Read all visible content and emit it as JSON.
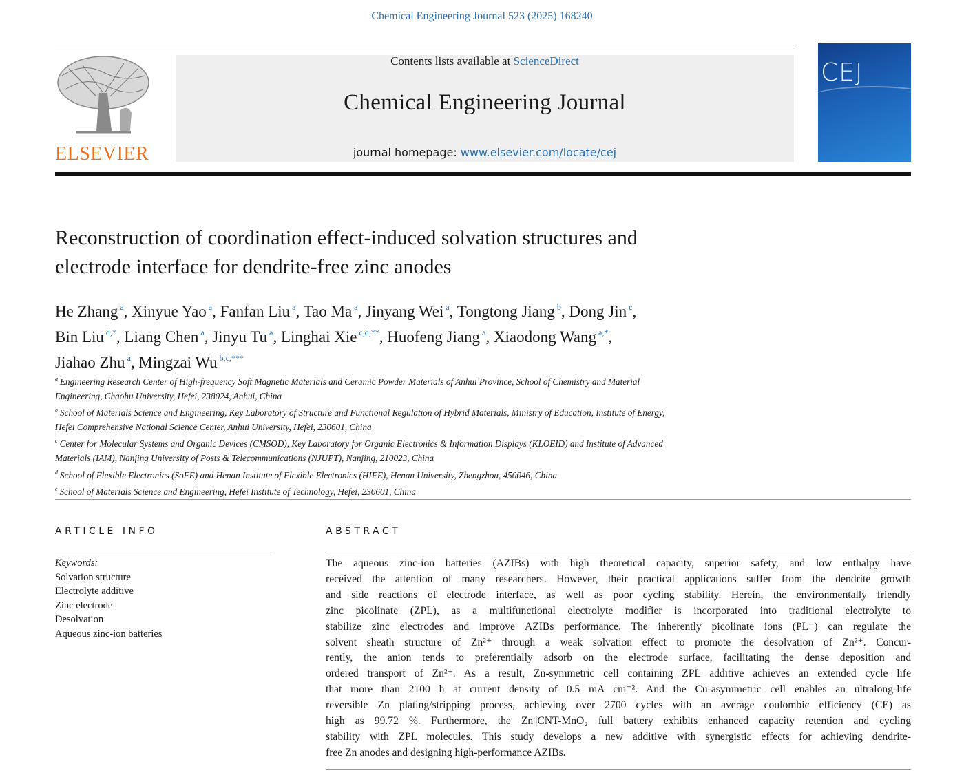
{
  "header": {
    "citation": "Chemical Engineering Journal 523 (2025) 168240",
    "contents_prefix": "Contents lists available at ",
    "contents_link": "ScienceDirect",
    "journal_title": "Chemical Engineering Journal",
    "homepage_label": "journal homepage: ",
    "homepage_url": "www.elsevier.com/locate/cej",
    "publisher_logo": "ELSEVIER",
    "cover_text": "CEJ",
    "brand_color": "#e9711c",
    "link_color": "#2a6fb0"
  },
  "article": {
    "title_lines": [
      "Reconstruction of coordination effect-induced solvation structures and",
      "electrode interface for dendrite-free zinc anodes"
    ],
    "author_lines": [
      [
        {
          "name": "He Zhang",
          "sup": "a"
        },
        {
          "name": "Xinyue Yao",
          "sup": "a"
        },
        {
          "name": "Fanfan Liu",
          "sup": "a"
        },
        {
          "name": "Tao Ma",
          "sup": "a"
        },
        {
          "name": "Jinyang Wei",
          "sup": "a"
        },
        {
          "name": "Tongtong Jiang",
          "sup": "b"
        },
        {
          "name": "Dong Jin",
          "sup": "c"
        }
      ],
      [
        {
          "name": "Bin Liu",
          "sup": "d,*"
        },
        {
          "name": "Liang Chen",
          "sup": "a"
        },
        {
          "name": "Jinyu Tu",
          "sup": "a"
        },
        {
          "name": "Linghai Xie",
          "sup": "c,d,**"
        },
        {
          "name": "Huofeng Jiang",
          "sup": "a"
        },
        {
          "name": "Xiaodong Wang",
          "sup": "a,*"
        }
      ],
      [
        {
          "name": "Jiahao Zhu",
          "sup": "a"
        },
        {
          "name": "Mingzai Wu",
          "sup": "b,c,***"
        }
      ]
    ],
    "affiliations": [
      {
        "label": "a",
        "lines": [
          "Engineering Research Center of High-frequency Soft Magnetic Materials and Ceramic Powder Materials of Anhui Province, School of Chemistry and Material",
          "Engineering, Chaohu University, Hefei, 238024, Anhui, China"
        ]
      },
      {
        "label": "b",
        "lines": [
          "School of Materials Science and Engineering, Key Laboratory of Structure and Functional Regulation of Hybrid Materials, Ministry of Education, Institute of Energy,",
          "Hefei Comprehensive National Science Center, Anhui University, Hefei, 230601, China"
        ]
      },
      {
        "label": "c",
        "lines": [
          "Center for Molecular Systems and Organic Devices (CMSOD), Key Laboratory for Organic Electronics & Information Displays (KLOEID) and Institute of Advanced",
          "Materials (IAM), Nanjing University of Posts & Telecommunications (NJUPT), Nanjing, 210023, China"
        ]
      },
      {
        "label": "d",
        "lines": [
          "School of Flexible Electronics (SoFE) and Henan Institute of Flexible Electronics (HIFE), Henan University, Zhengzhou, 450046, China"
        ]
      },
      {
        "label": "e",
        "lines": [
          "School of Materials Science and Engineering, Hefei Institute of Technology, Hefei, 230601, China"
        ]
      }
    ]
  },
  "article_info": {
    "heading": "ARTICLE INFO",
    "keywords_label": "Keywords:",
    "keywords": [
      "Solvation structure",
      "Electrolyte additive",
      "Zinc electrode",
      "Desolvation",
      "Aqueous zinc-ion batteries"
    ]
  },
  "abstract": {
    "heading": "ABSTRACT",
    "lines": [
      "The aqueous zinc-ion batteries (AZIBs) with high theoretical capacity, superior safety, and low enthalpy have",
      "received the attention of many researchers. However, their practical applications suffer from the dendrite growth",
      "and side reactions of electrode interface, as well as poor cycling stability. Herein, the environmentally friendly",
      "zinc picolinate (ZPL), as a multifunctional electrolyte modifier is incorporated into traditional electrolyte to",
      "stabilize zinc electrodes and improve AZIBs performance. The inherently picolinate ions (PL⁻) can regulate the",
      "solvent sheath structure of Zn²⁺ through a weak solvation effect to promote the desolvation of Zn²⁺. Concur-",
      "rently, the anion tends to preferentially adsorb on the electrode surface, facilitating the dense deposition and",
      "ordered transport of Zn²⁺. As a result, Zn-symmetric cell containing ZPL additive achieves an extended cycle life",
      "that more than 2100 h at current density of 0.5 mA cm⁻². And the Cu-asymmetric cell enables an ultralong-life",
      "reversible Zn plating/stripping process, achieving over 2700 cycles with an average coulombic efficiency (CE) as",
      "high as 99.72 %. Furthermore, the Zn||CNT-MnO₂ full battery exhibits enhanced capacity retention and cycling",
      "stability with ZPL molecules. This study develops a new additive with synergistic effects for achieving dendrite-",
      "free Zn anodes and designing high-performance AZIBs."
    ]
  }
}
